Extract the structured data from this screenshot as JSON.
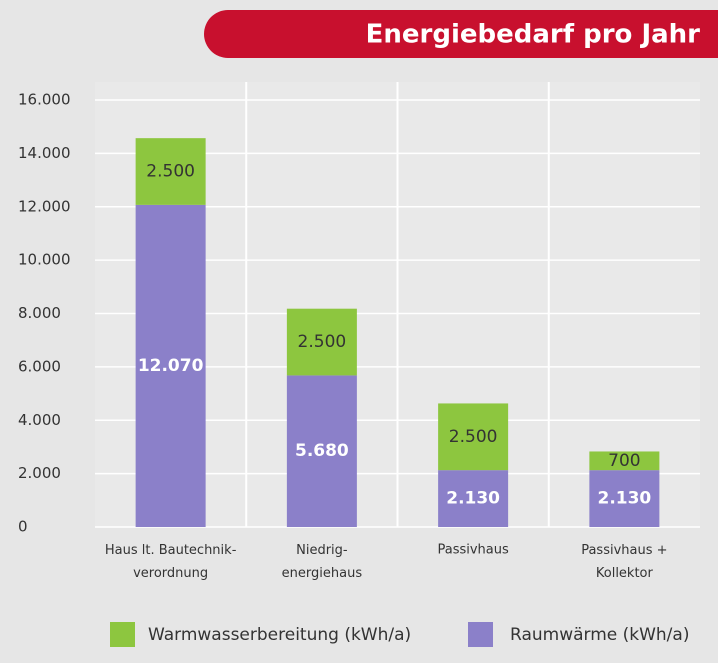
{
  "chart_data": {
    "type": "stacked_bar",
    "title": "Energiebedarf pro Jahr",
    "categories": [
      "Haus lt. Bautechnik-\nverordnung",
      "Niedrig-\nenergiehaus",
      "Passivhaus",
      "Passivhaus +\nKollektor"
    ],
    "series": [
      {
        "name": "Raumwärme (kWh/a)",
        "color": "#8b80c9",
        "values": [
          12070,
          5680,
          2130,
          2130
        ],
        "value_labels": [
          "12.070",
          "5.680",
          "2.130",
          "2.130"
        ]
      },
      {
        "name": "Warmwasserbereitung (kWh/a)",
        "color": "#8dc63f",
        "values": [
          2500,
          2500,
          2500,
          700
        ],
        "value_labels": [
          "2.500",
          "2.500",
          "2.500",
          "700"
        ]
      }
    ],
    "ylim": [
      0,
      16000
    ],
    "yticks": [
      0,
      {
        "value": 2000,
        "label": "2.000"
      },
      {
        "value": 4000,
        "label": "4.000"
      },
      {
        "value": 6000,
        "label": "6.000"
      },
      {
        "value": 8000,
        "label": "8.000"
      },
      {
        "value": 10000,
        "label": "10.000"
      },
      {
        "value": 12000,
        "label": "12.000"
      },
      {
        "value": 14000,
        "label": "14.000"
      },
      {
        "value": 16000,
        "label": "16.000"
      }
    ],
    "grid": true
  }
}
